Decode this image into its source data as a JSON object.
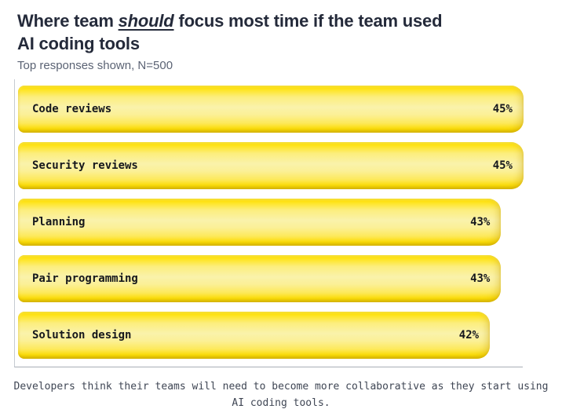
{
  "header": {
    "title_pre": "Where team ",
    "title_emphasis": "should",
    "title_post": " focus most time if the team used",
    "title_line2": "AI coding tools",
    "subtitle": "Top responses shown, N=500"
  },
  "footer": {
    "caption": "Developers think their teams will need to become more collaborative as they start using AI coding tools."
  },
  "colors": {
    "title_text": "#242a3a",
    "subtitle_text": "#5b6374",
    "footer_text": "#3f4654",
    "bar_yellow_edge": "#ffe20a",
    "bar_yellow_center": "#faf2ab",
    "bar_text": "#16181c",
    "axis_line_vertical": "#c6cbd2",
    "axis_line_horizontal": "#a9aeb6",
    "background": "#ffffff"
  },
  "chart_data": {
    "type": "bar",
    "orientation": "horizontal",
    "title": "Where team should focus most time if the team used AI coding tools",
    "subtitle": "Top responses shown, N=500",
    "categories": [
      "Code reviews",
      "Security reviews",
      "Planning",
      "Pair programming",
      "Solution design"
    ],
    "values": [
      45,
      45,
      43,
      43,
      42
    ],
    "value_labels": [
      "45%",
      "45%",
      "43%",
      "43%",
      "42%"
    ],
    "value_suffix": "%",
    "xlim": [
      0,
      45
    ],
    "grid": false,
    "legend": false,
    "xlabel": "",
    "ylabel": "",
    "caption": "Developers think their teams will need to become more collaborative as they start using AI coding tools."
  }
}
